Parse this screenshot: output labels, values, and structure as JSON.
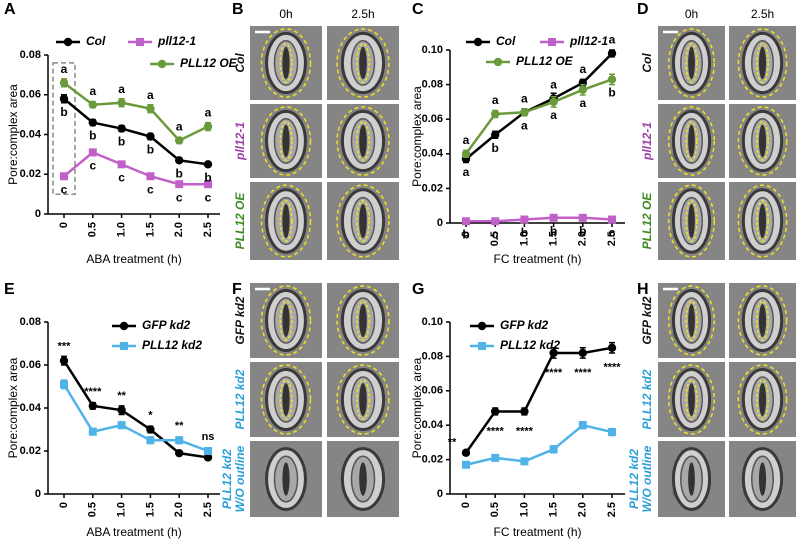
{
  "panel_letters": [
    "A",
    "B",
    "C",
    "D",
    "E",
    "F",
    "G",
    "H"
  ],
  "chart_data": [
    {
      "type": "line",
      "x_label": "ABA treatment (h)",
      "y_label": "Pore:complex area",
      "x": [
        0,
        0.5,
        1,
        1.5,
        2,
        2.5
      ],
      "xlim": [
        0,
        2.5
      ],
      "xticks": [
        0,
        0.5,
        {
          "value": 1,
          "label": "1.0"
        },
        1.5,
        {
          "value": 2,
          "label": "2.0"
        },
        2.5
      ],
      "ylim": [
        0,
        0.08
      ],
      "yticks": [
        0,
        0.02,
        0.04,
        0.06,
        0.08
      ],
      "series": [
        {
          "name": "Col",
          "color": "#000000",
          "marker": "circle",
          "values": [
            0.058,
            0.046,
            0.043,
            0.039,
            0.027,
            0.025
          ],
          "errors": [
            0.002,
            0.0015,
            0.0015,
            0.0015,
            0.001,
            0.001
          ],
          "letters": [
            "b",
            "b",
            "b",
            "b",
            "b",
            "b"
          ]
        },
        {
          "name": "pll12-1",
          "color": "#c060c8",
          "marker": "square",
          "values": [
            0.019,
            0.031,
            0.025,
            0.019,
            0.015,
            0.015
          ],
          "errors": [
            0.001,
            0.0015,
            0.0015,
            0.001,
            0.001,
            0.001
          ],
          "letters": [
            "c",
            "c",
            "c",
            "c",
            "c",
            "c"
          ]
        },
        {
          "name": "PLL12 OE",
          "color": "#6a9a3c",
          "marker": "circle",
          "values": [
            0.066,
            0.055,
            0.056,
            0.053,
            0.037,
            0.044
          ],
          "errors": [
            0.002,
            0.0015,
            0.002,
            0.002,
            0.0015,
            0.002
          ],
          "letters": [
            "a",
            "a",
            "a",
            "a",
            "a",
            "a"
          ]
        }
      ]
    },
    {
      "type": "line",
      "x_label": "FC treatment (h)",
      "y_label": "Pore:complex area",
      "x": [
        0,
        0.5,
        1,
        1.5,
        2,
        2.5
      ],
      "xlim": [
        0,
        2.5
      ],
      "xticks": [
        0,
        0.5,
        {
          "value": 1,
          "label": "1.0"
        },
        1.5,
        {
          "value": 2,
          "label": "2.0"
        },
        2.5
      ],
      "ylim": [
        0,
        0.1
      ],
      "yticks": [
        0,
        0.02,
        0.04,
        0.06,
        0.08,
        {
          "value": 0.1,
          "label": "0.10"
        }
      ],
      "series": [
        {
          "name": "Col",
          "color": "#000000",
          "marker": "circle",
          "values": [
            0.037,
            0.051,
            0.064,
            0.072,
            0.081,
            0.098
          ],
          "errors": [
            0.002,
            0.002,
            0.002,
            0.003,
            0.002,
            0.002
          ],
          "letters": [
            "a",
            "b",
            "a",
            "a",
            "a",
            "a"
          ]
        },
        {
          "name": "pll12-1",
          "color": "#c060c8",
          "marker": "square",
          "values": [
            0.001,
            0.001,
            0.002,
            0.003,
            0.003,
            0.002
          ],
          "errors": [
            0.0005,
            0.0005,
            0.0005,
            0.0005,
            0.0005,
            0.0005
          ],
          "letters": [
            "b",
            "c",
            "b",
            "b",
            "b",
            "c"
          ]
        },
        {
          "name": "PLL12 OE",
          "color": "#6a9a3c",
          "marker": "circle",
          "values": [
            0.04,
            0.063,
            0.064,
            0.07,
            0.077,
            0.083
          ],
          "errors": [
            0.002,
            0.002,
            0.002,
            0.003,
            0.003,
            0.003
          ],
          "letters": [
            "a",
            "a",
            "a",
            "a",
            "a",
            "b"
          ]
        }
      ]
    },
    {
      "type": "line",
      "x_label": "ABA treatment (h)",
      "y_label": "Pore:complex area",
      "x": [
        0,
        0.5,
        1,
        1.5,
        2,
        2.5
      ],
      "xlim": [
        0,
        2.5
      ],
      "xticks": [
        0,
        0.5,
        {
          "value": 1,
          "label": "1.0"
        },
        1.5,
        {
          "value": 2,
          "label": "2.0"
        },
        2.5
      ],
      "ylim": [
        0,
        0.08
      ],
      "yticks": [
        0,
        0.02,
        0.04,
        0.06,
        0.08
      ],
      "significance": [
        "***",
        "****",
        "**",
        "*",
        "**",
        "ns"
      ],
      "series": [
        {
          "name": "GFP kd2",
          "color": "#000000",
          "marker": "circle",
          "values": [
            0.062,
            0.041,
            0.039,
            0.03,
            0.019,
            0.017
          ],
          "errors": [
            0.002,
            0.0015,
            0.002,
            0.0015,
            0.001,
            0.001
          ]
        },
        {
          "name": "PLL12 kd2",
          "color": "#4fb3e8",
          "marker": "square",
          "values": [
            0.051,
            0.029,
            0.032,
            0.025,
            0.025,
            0.02
          ],
          "errors": [
            0.002,
            0.0015,
            0.0015,
            0.0015,
            0.0015,
            0.001
          ]
        }
      ]
    },
    {
      "type": "line",
      "x_label": "FC treatment (h)",
      "y_label": "Pore:complex area",
      "x": [
        0,
        0.5,
        1,
        1.5,
        2,
        2.5
      ],
      "xlim": [
        0,
        2.5
      ],
      "xticks": [
        0,
        0.5,
        {
          "value": 1,
          "label": "1.0"
        },
        1.5,
        {
          "value": 2,
          "label": "2.0"
        },
        2.5
      ],
      "ylim": [
        0,
        0.1
      ],
      "yticks": [
        0,
        0.02,
        0.04,
        0.06,
        0.08,
        {
          "value": 0.1,
          "label": "0.10"
        }
      ],
      "significance": [
        "**",
        "****",
        "****",
        "****",
        "****",
        "****"
      ],
      "series": [
        {
          "name": "GFP kd2",
          "color": "#000000",
          "marker": "circle",
          "values": [
            0.024,
            0.048,
            0.048,
            0.082,
            0.082,
            0.085
          ],
          "errors": [
            0.001,
            0.002,
            0.002,
            0.003,
            0.003,
            0.003
          ]
        },
        {
          "name": "PLL12 kd2",
          "color": "#4fb3e8",
          "marker": "square",
          "values": [
            0.017,
            0.021,
            0.019,
            0.026,
            0.04,
            0.036
          ],
          "errors": [
            0.001,
            0.001,
            0.001,
            0.002,
            0.002,
            0.002
          ]
        }
      ]
    }
  ],
  "micrographs": [
    {
      "columns": [
        "0h",
        "2.5h"
      ],
      "rows": [
        {
          "label": [
            "Col"
          ],
          "color": "#111111"
        },
        {
          "label": [
            "pll12-1"
          ],
          "color": "#9c3ea8"
        },
        {
          "label": [
            "PLL12 OE"
          ],
          "color": "#3d8a22"
        }
      ]
    },
    {
      "columns": [
        "0h",
        "2.5h"
      ],
      "rows": [
        {
          "label": [
            "Col"
          ],
          "color": "#111111"
        },
        {
          "label": [
            "pll12-1"
          ],
          "color": "#9c3ea8"
        },
        {
          "label": [
            "PLL12 OE"
          ],
          "color": "#3d8a22"
        }
      ]
    },
    {
      "rows": [
        {
          "label": [
            "GFP kd2"
          ],
          "color": "#111111"
        },
        {
          "label": [
            "PLL12 kd2"
          ],
          "color": "#2a9fd8"
        },
        {
          "label": [
            "PLL12 kd2",
            "W/O outline"
          ],
          "color": "#2a9fd8"
        }
      ]
    },
    {
      "rows": [
        {
          "label": [
            "GFP kd2"
          ],
          "color": "#111111"
        },
        {
          "label": [
            "PLL12 kd2"
          ],
          "color": "#2a9fd8"
        },
        {
          "label": [
            "PLL12 kd2",
            "W/O outline"
          ],
          "color": "#2a9fd8"
        }
      ]
    }
  ]
}
